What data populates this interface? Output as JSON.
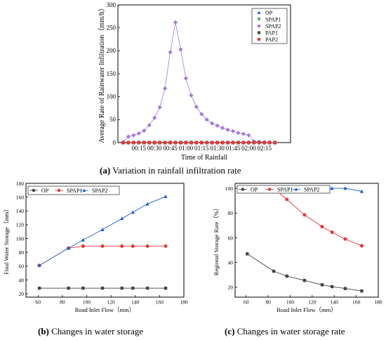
{
  "chart_data": [
    {
      "id": "a",
      "type": "scatter",
      "caption_letter": "(a)",
      "caption_text": " Variation in rainfall infiltration rate",
      "xlabel": "Time of Rainfall",
      "ylabel": "Average Rate of Rainwater Infiltration（mm/h）",
      "ylim": [
        0,
        300
      ],
      "yticks": [
        0,
        50,
        100,
        150,
        200,
        250,
        300
      ],
      "xlim_minutes": [
        -5,
        160
      ],
      "xtick_labels": [
        "00:15",
        "00:30",
        "00:45",
        "01:00",
        "01:15",
        "01:30",
        "01:45",
        "02:00",
        "02:15"
      ],
      "xtick_minutes": [
        15,
        30,
        45,
        60,
        75,
        90,
        105,
        120,
        135
      ],
      "legend_position": "top-right",
      "series": [
        {
          "name": "OP",
          "color": "#1f5fd0",
          "marker": "triangle-up",
          "x": [
            0,
            5,
            10,
            15,
            20,
            25,
            30,
            35,
            40,
            45,
            50,
            55,
            60,
            65,
            70,
            75,
            80,
            85,
            90,
            95,
            100,
            105,
            110,
            115,
            120,
            125,
            130,
            135,
            140,
            145
          ],
          "y": [
            0,
            0,
            0,
            0,
            0,
            0,
            0,
            0,
            0,
            0,
            0,
            0,
            0,
            0,
            0,
            0,
            0,
            0,
            0,
            0,
            0,
            0,
            0,
            0,
            0,
            0,
            0,
            0,
            0,
            0
          ]
        },
        {
          "name": "SPAP1",
          "color": "#1e9a3c",
          "marker": "triangle-down",
          "x": [
            0,
            5,
            10,
            15,
            20,
            25,
            30,
            35,
            40,
            45,
            50,
            55,
            60,
            65,
            70,
            75,
            80,
            85,
            90,
            95,
            100,
            105,
            110,
            115,
            120,
            125,
            130,
            135,
            140,
            145
          ],
          "y": [
            0,
            0,
            0,
            0,
            0,
            0,
            0,
            0,
            0,
            0,
            0,
            0,
            0,
            0,
            0,
            0,
            0,
            0,
            0,
            0,
            0,
            0,
            0,
            0,
            0,
            0,
            0,
            0,
            0,
            0
          ]
        },
        {
          "name": "SPAP2",
          "color": "#a678d8",
          "marker": "diamond",
          "x": [
            0,
            5,
            10,
            15,
            20,
            25,
            30,
            35,
            40,
            45,
            50,
            55,
            60,
            65,
            70,
            75,
            80,
            85,
            90,
            95,
            100,
            105,
            110,
            115,
            120,
            125,
            130,
            135,
            140,
            145
          ],
          "y": [
            1,
            13,
            16,
            20,
            26,
            38,
            54,
            77,
            118,
            197,
            262,
            203,
            140,
            103,
            78,
            62,
            50,
            42,
            37,
            32,
            28,
            25,
            21,
            19,
            16,
            3,
            2,
            1,
            1,
            0
          ]
        },
        {
          "name": "PAP1",
          "color": "#444444",
          "marker": "square",
          "x": [
            0,
            5,
            10,
            15,
            20,
            25,
            30,
            35,
            40,
            45,
            50,
            55,
            60,
            65,
            70,
            75,
            80,
            85,
            90,
            95,
            100,
            105,
            110,
            115,
            120,
            125,
            130,
            135,
            140,
            145
          ],
          "y": [
            0,
            0,
            0,
            0,
            0,
            0,
            0,
            0,
            0,
            0,
            0,
            0,
            0,
            0,
            0,
            0,
            0,
            0,
            0,
            0,
            0,
            0,
            0,
            0,
            0,
            0,
            0,
            0,
            0,
            0
          ]
        },
        {
          "name": "PAP2",
          "color": "#e53935",
          "marker": "circle",
          "x": [
            0,
            5,
            10,
            15,
            20,
            25,
            30,
            35,
            40,
            45,
            50,
            55,
            60,
            65,
            70,
            75,
            80,
            85,
            90,
            95,
            100,
            105,
            110,
            115,
            120,
            125,
            130,
            135,
            140,
            145
          ],
          "y": [
            0,
            0,
            0,
            0,
            0,
            0,
            0,
            0,
            0,
            0,
            0,
            0,
            0,
            0,
            0,
            0,
            0,
            0,
            0,
            0,
            0,
            0,
            0,
            0,
            0,
            0,
            0,
            0,
            0,
            0
          ]
        }
      ]
    },
    {
      "id": "b",
      "type": "line",
      "caption_letter": "(b)",
      "caption_text": " Changes in water storage",
      "xlabel": "Road Inlet Flow（mm）",
      "ylabel": "Final Water Storage（mm）",
      "xlim": [
        50,
        180
      ],
      "xticks": [
        60,
        80,
        100,
        120,
        140,
        160,
        180
      ],
      "ylim": [
        15,
        180
      ],
      "yticks": [
        20,
        40,
        60,
        80,
        100,
        120,
        140,
        160,
        180
      ],
      "legend_position": "top-left",
      "series": [
        {
          "name": "OP",
          "color": "#444444",
          "marker": "square",
          "x": [
            61,
            85,
            97,
            113,
            129,
            138,
            150,
            165
          ],
          "y": [
            28,
            28,
            28,
            28,
            28,
            28,
            28,
            28
          ]
        },
        {
          "name": "SPAP1",
          "color": "#e53935",
          "marker": "circle",
          "x": [
            61,
            85,
            97,
            113,
            129,
            138,
            150,
            165
          ],
          "y": [
            61,
            86,
            89,
            89,
            89,
            89,
            89,
            89
          ]
        },
        {
          "name": "SPAP2",
          "color": "#1f5fd0",
          "marker": "triangle-up",
          "x": [
            61,
            85,
            97,
            113,
            129,
            138,
            150,
            165
          ],
          "y": [
            61,
            86,
            98,
            113,
            129,
            138,
            150,
            161
          ]
        }
      ]
    },
    {
      "id": "c",
      "type": "line",
      "caption_letter": "(c)",
      "caption_text": " Changes in water storage rate",
      "xlabel": "Road Inlet Flow（mm）",
      "ylabel": "Regional Storage Rate（%）",
      "xlim": [
        50,
        180
      ],
      "xticks": [
        60,
        80,
        100,
        120,
        140,
        160,
        180
      ],
      "ylim": [
        12,
        104
      ],
      "yticks": [
        20,
        40,
        60,
        80,
        100
      ],
      "legend_position": "top",
      "series": [
        {
          "name": "OP",
          "color": "#444444",
          "marker": "square",
          "x": [
            61,
            85,
            97,
            113,
            129,
            138,
            150,
            165
          ],
          "y": [
            47,
            33,
            29,
            25.5,
            22,
            20.5,
            19,
            17
          ]
        },
        {
          "name": "SPAP1",
          "color": "#e53935",
          "marker": "circle",
          "x": [
            61,
            85,
            97,
            113,
            129,
            138,
            150,
            165
          ],
          "y": [
            100,
            100,
            91,
            78.5,
            69,
            64.5,
            59,
            53.5
          ]
        },
        {
          "name": "SPAP2",
          "color": "#1f5fd0",
          "marker": "triangle-up",
          "x": [
            61,
            85,
            97,
            113,
            129,
            138,
            150,
            165
          ],
          "y": [
            100,
            100,
            100,
            100,
            100,
            100,
            100,
            97.5
          ]
        }
      ]
    }
  ]
}
